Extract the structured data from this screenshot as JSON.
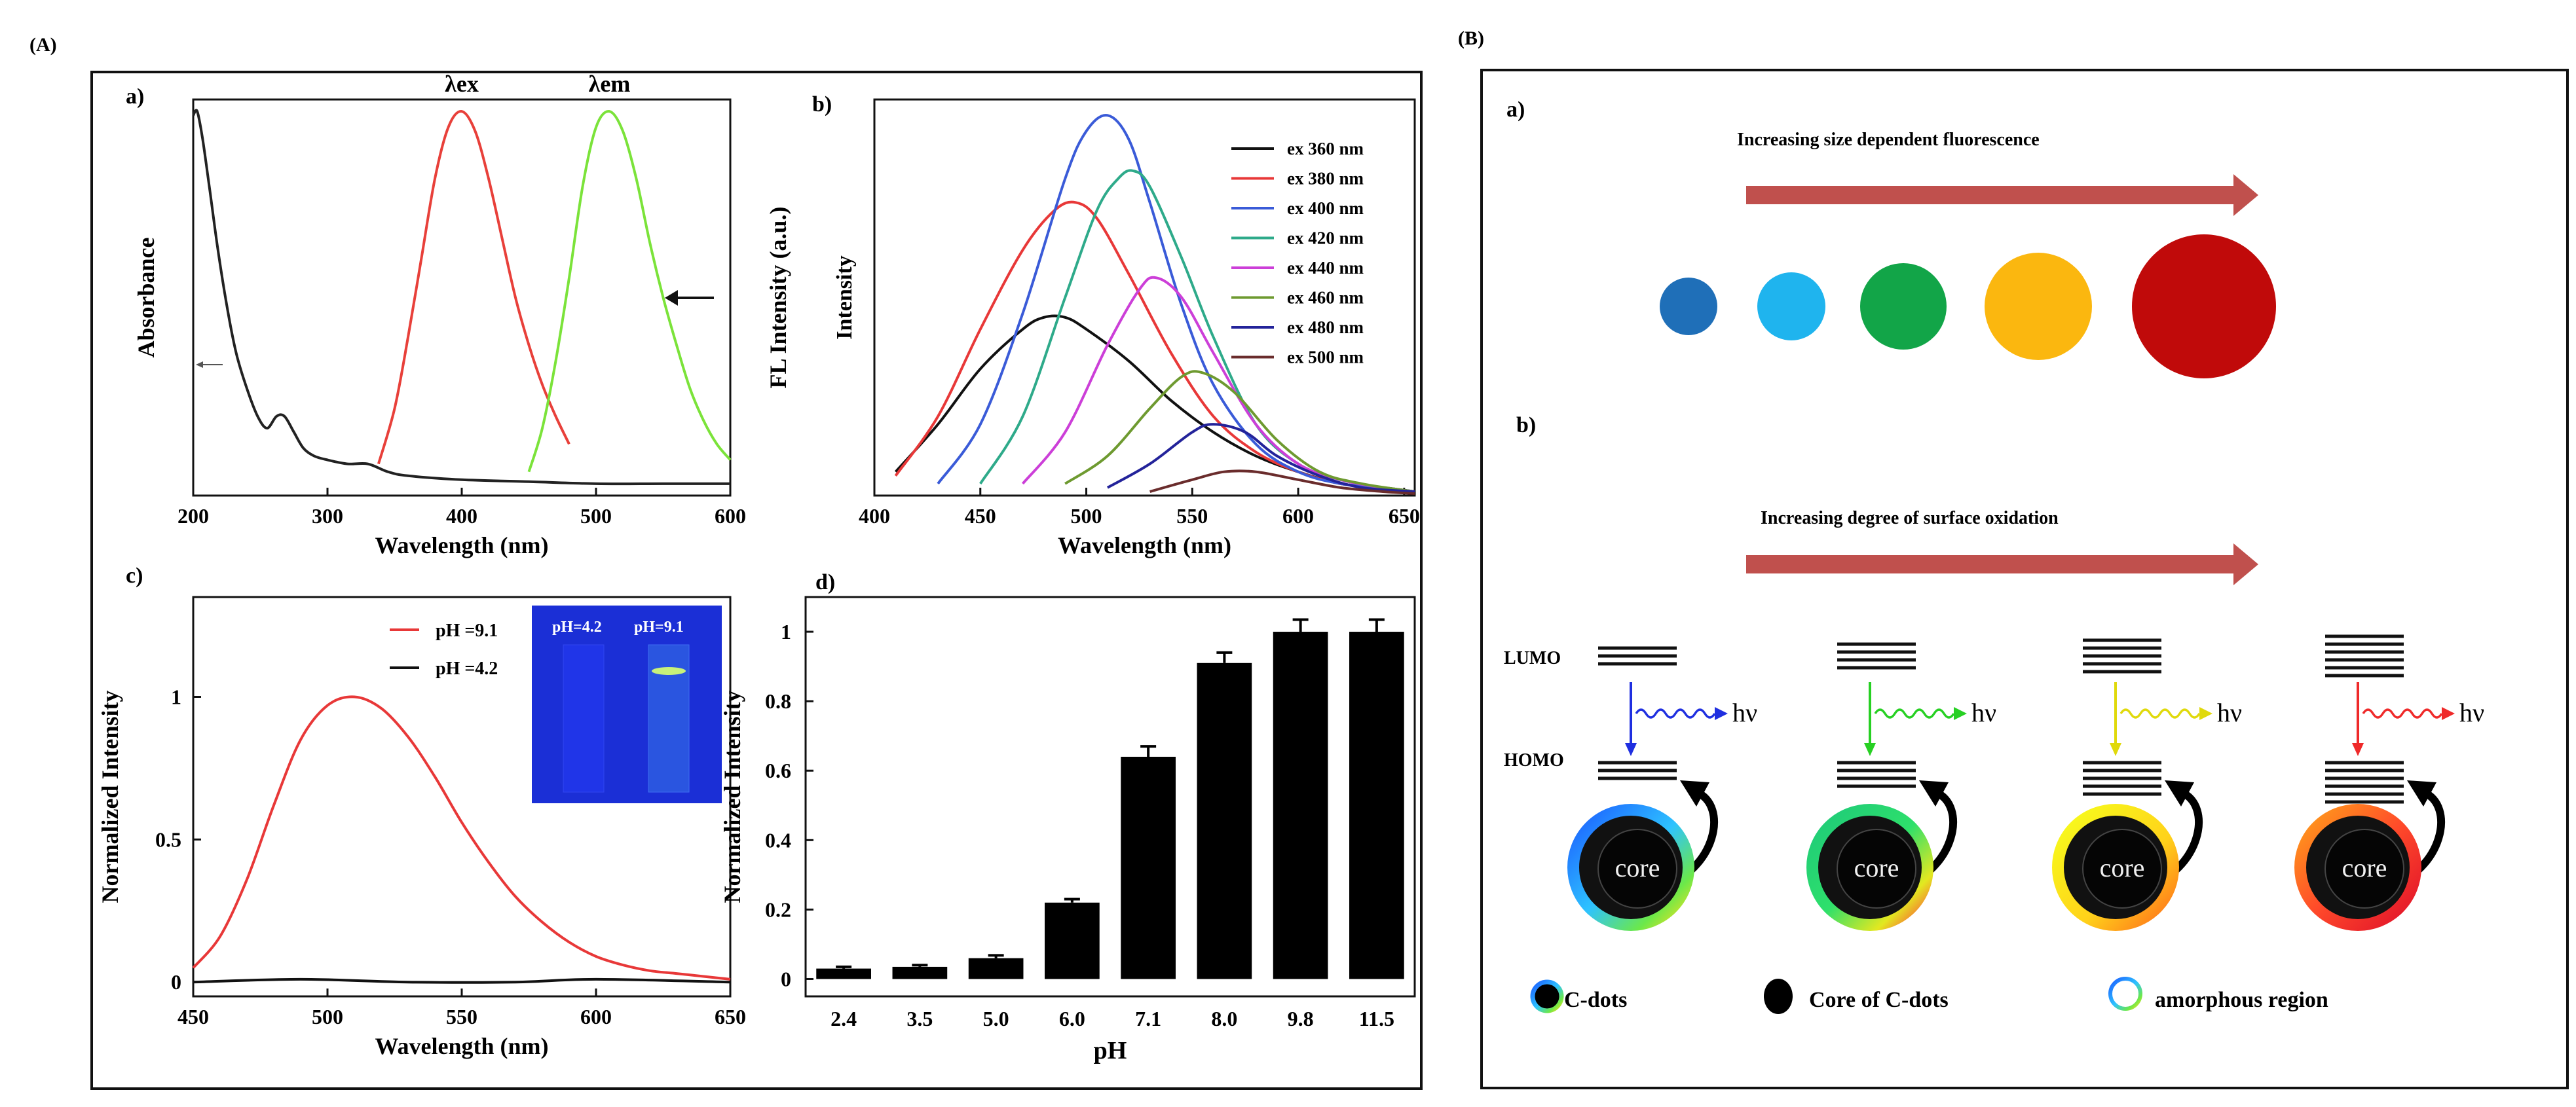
{
  "panelA": {
    "label": "(A)"
  },
  "panelB": {
    "label": "(B)"
  },
  "chart_data": [
    {
      "id": "Aa",
      "panel": "a)",
      "type": "line",
      "xlabel": "Wavelength (nm)",
      "ylabel": "Absorbance",
      "xlim": [
        200,
        600
      ],
      "ylim": [
        0,
        1
      ],
      "xticks": [
        200,
        300,
        400,
        500,
        600
      ],
      "series": [
        {
          "name": "absorbance",
          "color": "#222222",
          "x": [
            200,
            203,
            207,
            212,
            218,
            225,
            232,
            240,
            248,
            255,
            262,
            268,
            275,
            282,
            290,
            300,
            315,
            330,
            345,
            360,
            400,
            450,
            500,
            550,
            600
          ],
          "y": [
            0.96,
            0.97,
            0.9,
            0.78,
            0.63,
            0.48,
            0.36,
            0.27,
            0.2,
            0.17,
            0.2,
            0.2,
            0.16,
            0.12,
            0.1,
            0.09,
            0.08,
            0.08,
            0.06,
            0.05,
            0.04,
            0.035,
            0.03,
            0.03,
            0.03
          ]
        },
        {
          "name": "λex",
          "color": "#e8403a",
          "x": [
            338,
            350,
            360,
            370,
            380,
            390,
            400,
            410,
            420,
            430,
            440,
            450,
            460,
            470,
            480
          ],
          "y": [
            0.08,
            0.22,
            0.4,
            0.6,
            0.8,
            0.93,
            0.97,
            0.92,
            0.8,
            0.65,
            0.5,
            0.38,
            0.28,
            0.2,
            0.13
          ]
        },
        {
          "name": "λem",
          "color": "#7be33a",
          "x": [
            450,
            460,
            470,
            480,
            490,
            500,
            510,
            520,
            530,
            540,
            550,
            560,
            570,
            580,
            590,
            600
          ],
          "y": [
            0.06,
            0.17,
            0.34,
            0.55,
            0.78,
            0.93,
            0.97,
            0.92,
            0.8,
            0.64,
            0.5,
            0.38,
            0.27,
            0.19,
            0.13,
            0.09
          ]
        }
      ],
      "annotations": [
        "λex",
        "λem"
      ]
    },
    {
      "id": "Ab",
      "panel": "b)",
      "type": "line",
      "xlabel": "Wavelength (nm)",
      "ylabel": "FL Intensity  (a.u.)",
      "inner_ylabel": "Intensity",
      "xlim": [
        400,
        655
      ],
      "ylim": [
        0,
        1
      ],
      "xticks": [
        400,
        450,
        500,
        550,
        600,
        650
      ],
      "series": [
        {
          "name": "ex 360 nm",
          "color": "#111111",
          "x": [
            410,
            430,
            450,
            470,
            480,
            490,
            500,
            520,
            540,
            560,
            580,
            600,
            620,
            640,
            655
          ],
          "y": [
            0.06,
            0.18,
            0.32,
            0.42,
            0.45,
            0.45,
            0.42,
            0.34,
            0.24,
            0.16,
            0.1,
            0.06,
            0.03,
            0.02,
            0.01
          ]
        },
        {
          "name": "ex 380 nm",
          "color": "#e83838",
          "x": [
            410,
            430,
            450,
            470,
            485,
            495,
            505,
            520,
            540,
            560,
            580,
            600,
            620,
            640,
            655
          ],
          "y": [
            0.05,
            0.2,
            0.42,
            0.62,
            0.72,
            0.74,
            0.7,
            0.56,
            0.36,
            0.2,
            0.11,
            0.06,
            0.03,
            0.02,
            0.01
          ]
        },
        {
          "name": "ex 400 nm",
          "color": "#3a5bd8",
          "x": [
            430,
            450,
            470,
            490,
            500,
            510,
            520,
            530,
            545,
            560,
            580,
            600,
            620,
            640,
            655
          ],
          "y": [
            0.03,
            0.18,
            0.46,
            0.8,
            0.92,
            0.96,
            0.9,
            0.74,
            0.48,
            0.28,
            0.13,
            0.06,
            0.03,
            0.02,
            0.01
          ]
        },
        {
          "name": "ex 420 nm",
          "color": "#2eaa8a",
          "x": [
            450,
            470,
            490,
            505,
            515,
            522,
            530,
            545,
            560,
            580,
            600,
            620,
            640,
            655
          ],
          "y": [
            0.03,
            0.2,
            0.5,
            0.72,
            0.8,
            0.82,
            0.78,
            0.6,
            0.4,
            0.18,
            0.08,
            0.04,
            0.02,
            0.01
          ]
        },
        {
          "name": "ex 440 nm",
          "color": "#cc3fd8",
          "x": [
            470,
            490,
            510,
            525,
            533,
            545,
            560,
            580,
            600,
            620,
            640,
            655
          ],
          "y": [
            0.03,
            0.16,
            0.38,
            0.52,
            0.55,
            0.5,
            0.36,
            0.18,
            0.08,
            0.04,
            0.02,
            0.01
          ]
        },
        {
          "name": "ex 460 nm",
          "color": "#6e9a30",
          "x": [
            490,
            510,
            530,
            545,
            555,
            570,
            590,
            610,
            630,
            655
          ],
          "y": [
            0.03,
            0.1,
            0.22,
            0.3,
            0.31,
            0.26,
            0.14,
            0.06,
            0.03,
            0.01
          ]
        },
        {
          "name": "ex 480 nm",
          "color": "#23239a",
          "x": [
            510,
            530,
            550,
            560,
            575,
            590,
            610,
            630,
            655
          ],
          "y": [
            0.02,
            0.08,
            0.16,
            0.18,
            0.16,
            0.1,
            0.05,
            0.02,
            0.01
          ]
        },
        {
          "name": "ex 500 nm",
          "color": "#6a2c2c",
          "x": [
            530,
            550,
            565,
            580,
            600,
            620,
            640,
            655
          ],
          "y": [
            0.01,
            0.04,
            0.06,
            0.06,
            0.04,
            0.02,
            0.01,
            0.005
          ]
        }
      ]
    },
    {
      "id": "Ac",
      "panel": "c)",
      "type": "line",
      "xlabel": "Wavelength (nm)",
      "ylabel": "Normalized  Intensity",
      "xlim": [
        450,
        650
      ],
      "ylim": [
        -0.05,
        1.35
      ],
      "xticks": [
        450,
        500,
        550,
        600,
        650
      ],
      "yticks": [
        0.0,
        0.5,
        1.0
      ],
      "series": [
        {
          "name": "pH =9.1",
          "color": "#e83838",
          "x": [
            450,
            460,
            470,
            480,
            490,
            500,
            510,
            520,
            530,
            540,
            550,
            560,
            570,
            580,
            590,
            600,
            610,
            620,
            630,
            640,
            650
          ],
          "y": [
            0.05,
            0.16,
            0.36,
            0.62,
            0.85,
            0.97,
            1.0,
            0.96,
            0.86,
            0.72,
            0.56,
            0.42,
            0.3,
            0.21,
            0.14,
            0.09,
            0.06,
            0.04,
            0.03,
            0.02,
            0.01
          ]
        },
        {
          "name": "pH =4.2",
          "color": "#111111",
          "x": [
            450,
            490,
            530,
            570,
            600,
            650
          ],
          "y": [
            0.0,
            0.01,
            0.0,
            0.0,
            0.01,
            0.0
          ]
        }
      ],
      "inset": {
        "labels": [
          "pH=4.2",
          "pH=9.1"
        ]
      }
    },
    {
      "id": "Ad",
      "panel": "d)",
      "type": "bar",
      "xlabel": "pH",
      "ylabel": "Normalized  Intensity",
      "ylim": [
        -0.05,
        1.1
      ],
      "yticks": [
        0.0,
        0.2,
        0.4,
        0.6,
        0.8,
        1.0
      ],
      "categories": [
        "2.4",
        "3.5",
        "5.0",
        "6.0",
        "7.1",
        "8.0",
        "9.8",
        "11.5"
      ],
      "values": [
        0.03,
        0.035,
        0.06,
        0.22,
        0.64,
        0.91,
        1.0,
        1.0
      ],
      "errors": [
        0.005,
        0.005,
        0.008,
        0.01,
        0.03,
        0.03,
        0.035,
        0.035
      ]
    }
  ],
  "B": {
    "a_label": "a)",
    "a_title": "Increasing size dependent fluorescence",
    "dots": [
      {
        "color": "#1f6fb8",
        "size": 1
      },
      {
        "color": "#1fb4ee",
        "size": 2
      },
      {
        "color": "#12a548",
        "size": 3
      },
      {
        "color": "#fbb70f",
        "size": 4
      },
      {
        "color": "#c00a0a",
        "size": 5
      }
    ],
    "b_label": "b)",
    "b_title": "Increasing degree of surface oxidation",
    "lumo": "LUMO",
    "homo": "HOMO",
    "hv": "hν",
    "core": "core",
    "stages": [
      {
        "arrow_color": "#1f2fe0",
        "wave_color": "#1f2fe0"
      },
      {
        "arrow_color": "#27d023",
        "wave_color": "#27d023"
      },
      {
        "arrow_color": "#e0d90b",
        "wave_color": "#e0d90b"
      },
      {
        "arrow_color": "#ef2a2a",
        "wave_color": "#ef2a2a"
      }
    ],
    "legend": {
      "cdots": "C-dots",
      "core": "Core of C-dots",
      "amorphous": "amorphous  region"
    }
  }
}
